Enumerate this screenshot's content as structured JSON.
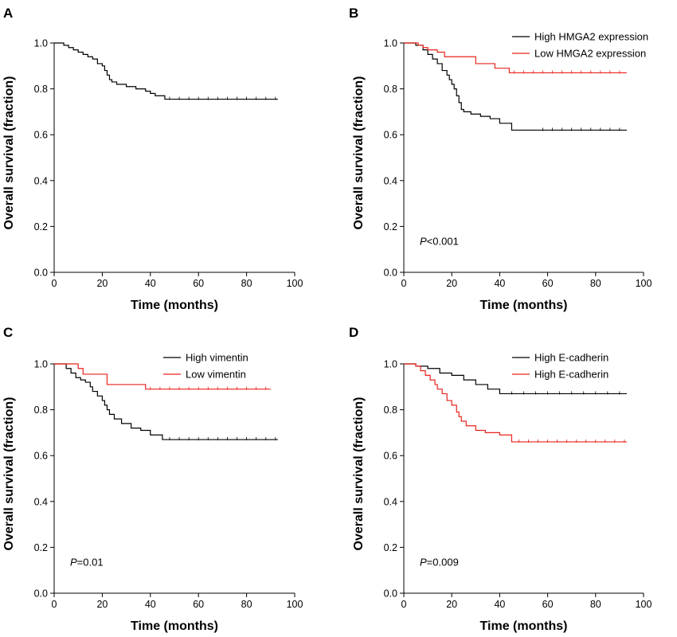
{
  "chart_data": [
    {
      "type": "line",
      "panel": "A",
      "xlabel": "Time (months)",
      "ylabel": "Overall survival (fraction)",
      "xlim": [
        0,
        100
      ],
      "ylim": [
        0,
        1.0
      ],
      "xticks": [
        "0",
        "20",
        "40",
        "60",
        "80",
        "100"
      ],
      "yticks": [
        "0.0",
        "0.2",
        "0.4",
        "0.6",
        "0.8",
        "1.0"
      ],
      "legend": "none",
      "pvalue": null,
      "series": [
        {
          "color": "#000000",
          "x": [
            0,
            4,
            6,
            8,
            10,
            12,
            14,
            16,
            18,
            20,
            21,
            22,
            23,
            24,
            26,
            30,
            34,
            38,
            40,
            42,
            46,
            93
          ],
          "y": [
            1.0,
            0.99,
            0.98,
            0.97,
            0.96,
            0.95,
            0.94,
            0.93,
            0.91,
            0.9,
            0.88,
            0.86,
            0.84,
            0.83,
            0.82,
            0.81,
            0.8,
            0.79,
            0.78,
            0.77,
            0.755,
            0.755
          ],
          "censor_x": [
            48,
            52,
            56,
            60,
            64,
            68,
            72,
            76,
            80,
            84,
            88,
            92
          ]
        }
      ]
    },
    {
      "type": "line",
      "panel": "B",
      "xlabel": "Time (months)",
      "ylabel": "Overall survival (fraction)",
      "xlim": [
        0,
        100
      ],
      "ylim": [
        0,
        1.0
      ],
      "xticks": [
        "0",
        "20",
        "40",
        "60",
        "80",
        "100"
      ],
      "yticks": [
        "0.0",
        "0.2",
        "0.4",
        "0.6",
        "0.8",
        "1.0"
      ],
      "legend": "top-right",
      "pvalue": {
        "italic": "P",
        "rest": "<0.001"
      },
      "series": [
        {
          "name": "High HMGA2 expression",
          "color": "#000000",
          "x": [
            0,
            5,
            8,
            10,
            12,
            14,
            16,
            18,
            19,
            20,
            21,
            22,
            23,
            24,
            25,
            28,
            32,
            36,
            40,
            45,
            93
          ],
          "y": [
            1.0,
            0.99,
            0.97,
            0.95,
            0.93,
            0.91,
            0.88,
            0.86,
            0.84,
            0.82,
            0.8,
            0.77,
            0.74,
            0.71,
            0.7,
            0.69,
            0.68,
            0.67,
            0.65,
            0.62,
            0.62
          ],
          "censor_x": [
            58,
            62,
            66,
            70,
            74,
            78,
            82,
            86,
            90
          ]
        },
        {
          "name": "Low HMGA2 expression",
          "color": "#e8231b",
          "x": [
            0,
            6,
            8,
            10,
            14,
            17,
            30,
            38,
            44,
            93
          ],
          "y": [
            1.0,
            0.99,
            0.98,
            0.97,
            0.96,
            0.94,
            0.91,
            0.89,
            0.87,
            0.87
          ],
          "censor_x": [
            46,
            50,
            54,
            58,
            62,
            66,
            70,
            74,
            78,
            82,
            86,
            90
          ]
        }
      ]
    },
    {
      "type": "line",
      "panel": "C",
      "xlabel": "Time (months)",
      "ylabel": "Overall survival (fraction)",
      "xlim": [
        0,
        100
      ],
      "ylim": [
        0,
        1.0
      ],
      "xticks": [
        "0",
        "20",
        "40",
        "60",
        "80",
        "100"
      ],
      "yticks": [
        "0.0",
        "0.2",
        "0.4",
        "0.6",
        "0.8",
        "1.0"
      ],
      "legend": "top-right",
      "pvalue": {
        "italic": "P",
        "rest": "=0.01"
      },
      "series": [
        {
          "name": "High vimentin",
          "color": "#000000",
          "x": [
            0,
            5,
            7,
            9,
            11,
            13,
            15,
            16,
            18,
            20,
            21,
            22,
            23,
            25,
            28,
            32,
            36,
            40,
            45,
            93
          ],
          "y": [
            1.0,
            0.98,
            0.96,
            0.94,
            0.93,
            0.92,
            0.9,
            0.88,
            0.86,
            0.84,
            0.82,
            0.8,
            0.78,
            0.76,
            0.74,
            0.72,
            0.71,
            0.69,
            0.67,
            0.67
          ],
          "censor_x": [
            48,
            52,
            56,
            60,
            64,
            68,
            72,
            76,
            80,
            84,
            88,
            92
          ]
        },
        {
          "name": "Low vimentin",
          "color": "#e8231b",
          "x": [
            0,
            10,
            12,
            22,
            38,
            90
          ],
          "y": [
            1.0,
            0.98,
            0.955,
            0.91,
            0.89,
            0.89
          ],
          "censor_x": [
            40,
            44,
            48,
            52,
            56,
            60,
            64,
            68,
            72,
            76,
            80,
            84,
            88
          ]
        }
      ]
    },
    {
      "type": "line",
      "panel": "D",
      "xlabel": "Time (months)",
      "ylabel": "Overall survival (fraction)",
      "xlim": [
        0,
        100
      ],
      "ylim": [
        0,
        1.0
      ],
      "xticks": [
        "0",
        "20",
        "40",
        "60",
        "80",
        "100"
      ],
      "yticks": [
        "0.0",
        "0.2",
        "0.4",
        "0.6",
        "0.8",
        "1.0"
      ],
      "legend": "top-right",
      "pvalue": {
        "italic": "P",
        "rest": "=0.009"
      },
      "series": [
        {
          "name": "High E-cadherin",
          "color": "#000000",
          "x": [
            0,
            5,
            10,
            15,
            20,
            25,
            30,
            35,
            40,
            93
          ],
          "y": [
            1.0,
            0.99,
            0.98,
            0.96,
            0.95,
            0.93,
            0.91,
            0.89,
            0.87,
            0.87
          ],
          "censor_x": [
            45,
            50,
            55,
            60,
            65,
            70,
            75,
            80,
            85,
            90
          ]
        },
        {
          "name": "High E-cadherin",
          "color": "#e8231b",
          "x": [
            0,
            5,
            7,
            9,
            11,
            13,
            14,
            16,
            18,
            20,
            22,
            23,
            24,
            26,
            30,
            34,
            40,
            45,
            93
          ],
          "y": [
            1.0,
            0.99,
            0.97,
            0.95,
            0.93,
            0.91,
            0.89,
            0.87,
            0.84,
            0.82,
            0.79,
            0.77,
            0.75,
            0.73,
            0.71,
            0.7,
            0.69,
            0.66,
            0.66
          ],
          "censor_x": [
            48,
            52,
            56,
            60,
            64,
            68,
            72,
            76,
            80,
            84,
            88,
            92
          ]
        }
      ]
    }
  ]
}
